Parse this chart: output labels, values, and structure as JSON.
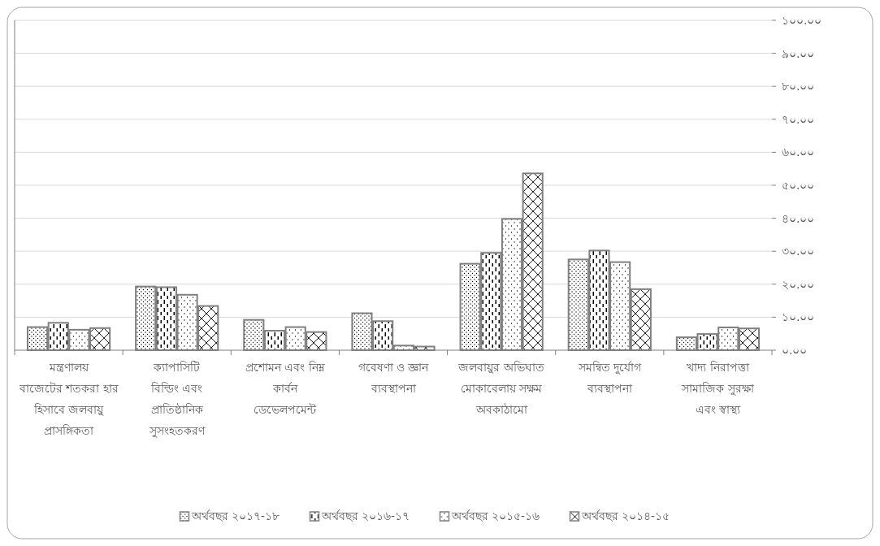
{
  "chart_data": {
    "type": "bar",
    "categories": [
      "মন্ত্রণালয় বাজেটের শতকরা হার হিসাবে জলবায়ু প্রাসঙ্গিকতা",
      "ক্যাপাসিটি বিল্ডিং এবং প্রাতিষ্ঠানিক সুসংহতকরণ",
      "প্রশোমন এবং নিম্ন কার্বন ডেভেলপমেন্ট",
      "গবেষণা ও জ্ঞান ব্যবস্থাপনা",
      "জলবায়ুর অভিঘাত মোকাবেলায় সক্ষম অবকাঠামো",
      "সমন্বিত দুর্যোগ ব্যবস্থাপনা",
      "খাদ্য নিরাপত্তা সামাজিক সুরক্ষা এবং স্বাস্থ্য"
    ],
    "series": [
      {
        "name": "অর্থবছর ২০১৭-১৮",
        "color": "#808080",
        "values": [
          7.0,
          19.3,
          9.2,
          11.2,
          26.2,
          27.5,
          3.9
        ]
      },
      {
        "name": "অর্থবছর ২০১৬-১৭",
        "color": "#808080",
        "values": [
          8.3,
          19.1,
          5.9,
          8.8,
          29.5,
          30.2,
          4.9
        ]
      },
      {
        "name": "অর্থবছর ২০১৫-১৬",
        "color": "#808080",
        "values": [
          6.2,
          16.8,
          7.0,
          1.4,
          39.8,
          26.7,
          6.9
        ]
      },
      {
        "name": "অর্থবছর ২০১৪-১৫",
        "color": "#808080",
        "values": [
          6.7,
          13.4,
          5.5,
          1.1,
          53.6,
          18.5,
          6.6
        ]
      }
    ],
    "ylim": [
      0,
      100
    ],
    "yticks": [
      {
        "value": 0,
        "label": "০.০০"
      },
      {
        "value": 10,
        "label": "১০.০০"
      },
      {
        "value": 20,
        "label": "২০.০০"
      },
      {
        "value": 30,
        "label": "৩০.০০"
      },
      {
        "value": 40,
        "label": "৪০.০০"
      },
      {
        "value": 50,
        "label": "৫০.০০"
      },
      {
        "value": 60,
        "label": "৬০.০০"
      },
      {
        "value": 70,
        "label": "৭০.০০"
      },
      {
        "value": 80,
        "label": "৮০.০০"
      },
      {
        "value": 90,
        "label": "৯০.০০"
      },
      {
        "value": 100,
        "label": "১০০.০০"
      }
    ],
    "grid": "y",
    "legend": "bottom"
  }
}
